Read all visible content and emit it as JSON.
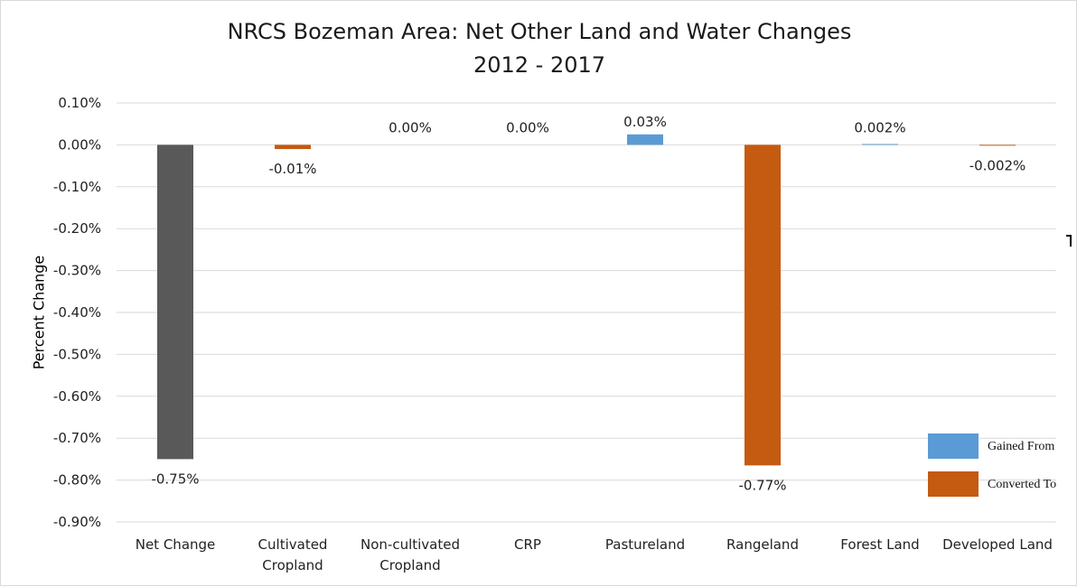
{
  "chart_data": {
    "type": "bar",
    "title": "NRCS Bozeman Area: Net Other Land and Water Changes",
    "subtitle": "2012 - 2017",
    "ylabel": "Percent Change",
    "xlabel": "",
    "ylim": [
      -0.9,
      0.1
    ],
    "yticks": [
      "0.10%",
      "0.00%",
      "-0.10%",
      "-0.20%",
      "-0.30%",
      "-0.40%",
      "-0.50%",
      "-0.60%",
      "-0.70%",
      "-0.80%",
      "-0.90%"
    ],
    "grid": true,
    "legend_position": "bottom-right",
    "categories": [
      [
        "Net Change"
      ],
      [
        "Cultivated",
        "Cropland"
      ],
      [
        "Non-cultivated",
        "Cropland"
      ],
      [
        "CRP"
      ],
      [
        "Pastureland"
      ],
      [
        "Rangeland"
      ],
      [
        "Forest Land"
      ],
      [
        "Developed Land"
      ]
    ],
    "values": [
      -0.75,
      -0.01,
      0.0,
      0.0,
      0.025,
      -0.765,
      0.002,
      -0.002
    ],
    "data_labels": [
      "-0.75%",
      "-0.01%",
      "0.00%",
      "0.00%",
      "0.03%",
      "-0.77%",
      "0.002%",
      "-0.002%"
    ],
    "bar_series": [
      "net",
      "converted",
      "gained",
      "gained",
      "gained",
      "converted",
      "gained",
      "converted"
    ],
    "legend": [
      {
        "key": "gained",
        "label": "Gained From",
        "color": "#5b9bd5"
      },
      {
        "key": "converted",
        "label": "Converted To",
        "color": "#c55a11"
      }
    ],
    "colors": {
      "net": "#595959",
      "gained": "#5b9bd5",
      "converted": "#c55a11",
      "grid": "#d9d9d9"
    }
  }
}
